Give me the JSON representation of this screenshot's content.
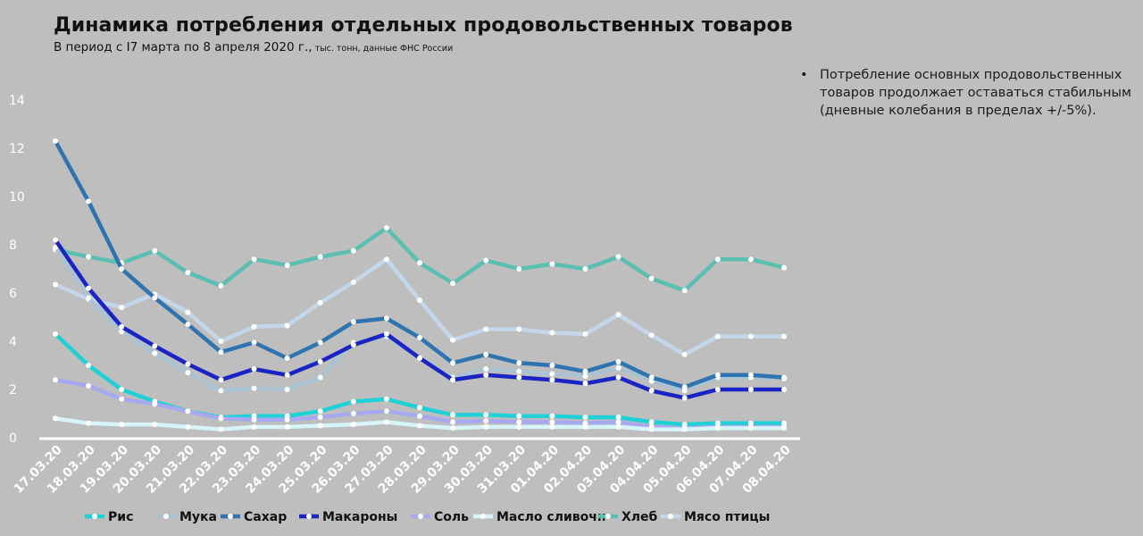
{
  "header": {
    "title": "Динамика потребления отдельных продовольственных товаров",
    "subtitle": "В период с I7 марта по 8 апреля 2020 г.,",
    "subtitle_note": " тыс. тонн, данные ФНС России"
  },
  "note": {
    "bullet": "•",
    "text": "Потребление основных продовольственных товаров продолжает оставаться стабильным (дневные колебания в пределах +/-5%)."
  },
  "chart_data": {
    "type": "line",
    "title": "Динамика потребления отдельных продовольственных товаров",
    "xlabel": "",
    "ylabel": "",
    "ylim": [
      0,
      14
    ],
    "yticks": [
      0,
      2,
      4,
      6,
      8,
      10,
      12,
      14
    ],
    "grid": false,
    "legend_position": "bottom",
    "categories": [
      "17.03.20",
      "18.03.20",
      "19.03.20",
      "20.03.20",
      "21.03.20",
      "22.03.20",
      "23.03.20",
      "24.03.20",
      "25.03.20",
      "26.03.20",
      "27.03.20",
      "28.03.20",
      "29.03.20",
      "30.03.20",
      "31.03.20",
      "01.04.20",
      "02.04.20",
      "03.04.20",
      "04.04.20",
      "05.04.20",
      "06.04.20",
      "07.04.20",
      "08.04.20"
    ],
    "series": [
      {
        "name": "Рис",
        "color": "#1fd1d6",
        "values": [
          4.3,
          3.0,
          2.0,
          1.5,
          1.1,
          0.85,
          0.9,
          0.9,
          1.1,
          1.5,
          1.6,
          1.25,
          0.95,
          0.95,
          0.9,
          0.9,
          0.85,
          0.85,
          0.65,
          0.55,
          0.6,
          0.6,
          0.6
        ]
      },
      {
        "name": "Мука",
        "color": "#a9c3d3",
        "values": [
          7.9,
          5.8,
          4.4,
          3.5,
          2.7,
          1.95,
          2.05,
          2.0,
          2.5,
          3.95,
          4.2,
          3.3,
          2.5,
          2.85,
          2.75,
          2.65,
          2.55,
          2.9,
          2.35,
          1.95,
          2.5,
          2.5,
          2.45
        ]
      },
      {
        "name": "Сахар",
        "color": "#2f73b0",
        "values": [
          12.3,
          9.8,
          7.0,
          5.8,
          4.7,
          3.55,
          3.95,
          3.3,
          3.95,
          4.8,
          4.95,
          4.15,
          3.1,
          3.45,
          3.1,
          3.0,
          2.75,
          3.15,
          2.5,
          2.1,
          2.6,
          2.6,
          2.5
        ]
      },
      {
        "name": "Макароны",
        "color": "#1a23c4",
        "values": [
          8.2,
          6.2,
          4.6,
          3.8,
          3.05,
          2.4,
          2.85,
          2.6,
          3.15,
          3.85,
          4.3,
          3.3,
          2.4,
          2.6,
          2.5,
          2.4,
          2.25,
          2.5,
          1.95,
          1.65,
          2.0,
          2.0,
          2.0
        ]
      },
      {
        "name": "Соль",
        "color": "#a7a9f0",
        "values": [
          2.4,
          2.15,
          1.6,
          1.4,
          1.1,
          0.8,
          0.75,
          0.75,
          0.85,
          1.0,
          1.1,
          0.9,
          0.65,
          0.7,
          0.65,
          0.65,
          0.6,
          0.65,
          0.45,
          0.4,
          0.45,
          0.45,
          0.45
        ]
      },
      {
        "name": "Масло сливочн",
        "color": "#d6f5f8",
        "values": [
          0.8,
          0.6,
          0.55,
          0.55,
          0.45,
          0.35,
          0.45,
          0.45,
          0.5,
          0.55,
          0.65,
          0.5,
          0.4,
          0.45,
          0.45,
          0.45,
          0.45,
          0.45,
          0.35,
          0.35,
          0.4,
          0.4,
          0.4
        ]
      },
      {
        "name": "Хлеб",
        "color": "#5abfb0",
        "values": [
          7.8,
          7.5,
          7.25,
          7.75,
          6.85,
          6.3,
          7.4,
          7.15,
          7.5,
          7.75,
          8.7,
          7.25,
          6.4,
          7.35,
          7.0,
          7.2,
          7.0,
          7.5,
          6.6,
          6.1,
          7.4,
          7.4,
          7.05
        ]
      },
      {
        "name": "Мясо птицы",
        "color": "#c4d7ea",
        "values": [
          6.35,
          5.75,
          5.4,
          5.95,
          5.2,
          4.0,
          4.6,
          4.65,
          5.6,
          6.45,
          7.4,
          5.7,
          4.05,
          4.5,
          4.5,
          4.35,
          4.3,
          5.1,
          4.25,
          3.45,
          4.2,
          4.2,
          4.2
        ]
      }
    ]
  }
}
